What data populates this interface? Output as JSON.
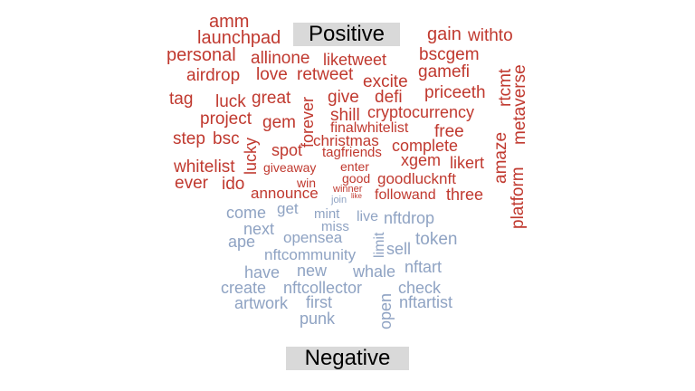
{
  "labels": {
    "positive": "Positive",
    "negative": "Negative"
  },
  "colors": {
    "positive": "#c0392f",
    "negative": "#8fa3c3",
    "label_bg": "#d9d9d9"
  },
  "positive_words": [
    "amm",
    "launchpad",
    "gain",
    "withto",
    "personal",
    "allinone",
    "liketweet",
    "bscgem",
    "airdrop",
    "love",
    "retweet",
    "gamefi",
    "excite",
    "rtcmt",
    "metaverse",
    "tag",
    "luck",
    "great",
    "forever",
    "give",
    "defi",
    "priceeth",
    "shill",
    "cryptocurrency",
    "project",
    "gem",
    "finalwhitelist",
    "free",
    "amaze",
    "step",
    "bsc",
    "christmas",
    "complete",
    "lucky",
    "spot",
    "tagfriends",
    "xgem",
    "likert",
    "platform",
    "whitelist",
    "giveaway",
    "enter",
    "good",
    "goodlucknft",
    "ever",
    "ido",
    "win",
    "winner",
    "like",
    "announce",
    "followand",
    "three"
  ],
  "negative_words": [
    "join",
    "come",
    "get",
    "mint",
    "live",
    "nftdrop",
    "next",
    "miss",
    "ape",
    "opensea",
    "token",
    "sell",
    "limit",
    "nftcommunity",
    "have",
    "new",
    "whale",
    "nftart",
    "create",
    "nftcollector",
    "check",
    "artwork",
    "first",
    "nftartist",
    "punk",
    "open"
  ]
}
